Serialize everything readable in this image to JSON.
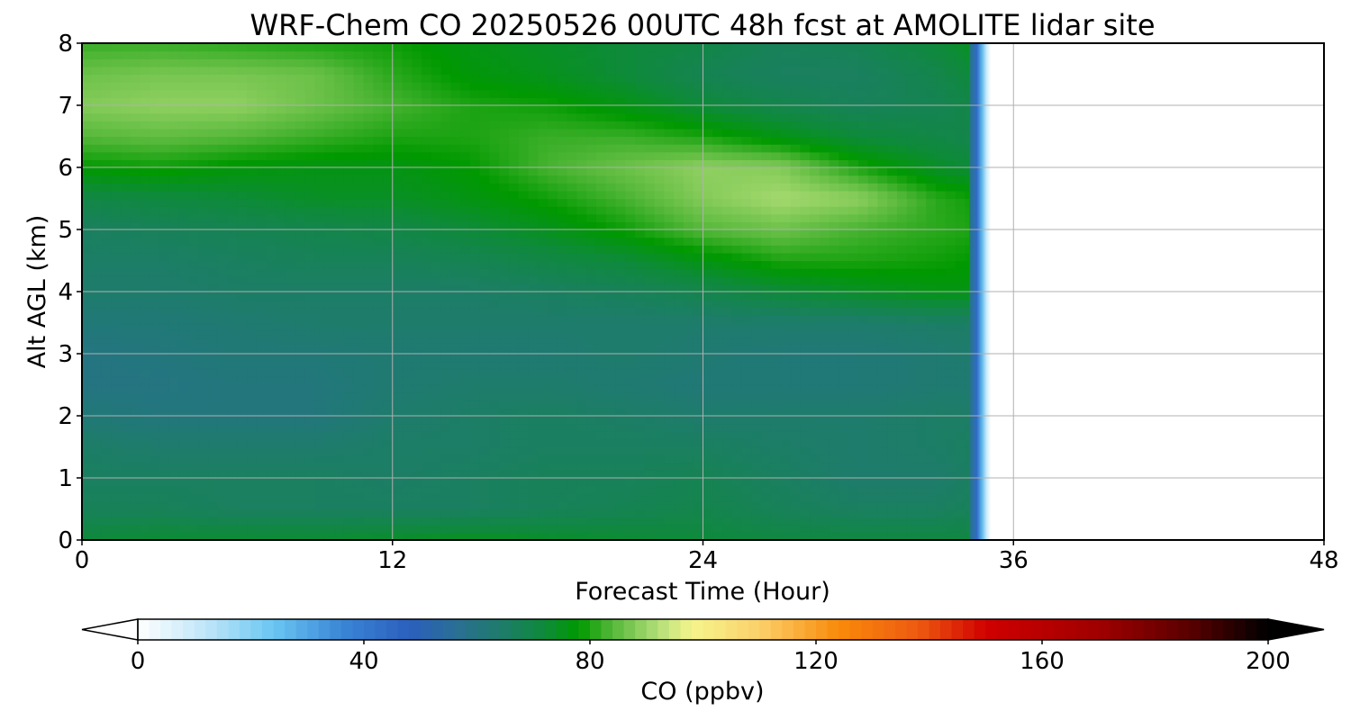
{
  "chart_data": {
    "type": "heatmap",
    "title": "WRF-Chem CO  20250526 00UTC 48h fcst at AMOLITE lidar site",
    "xlabel": "Forecast Time (Hour)",
    "ylabel": "Alt AGL (km)",
    "xlim": [
      0,
      48
    ],
    "ylim": [
      0,
      8
    ],
    "x_ticks": [
      "0",
      "12",
      "24",
      "36",
      "48"
    ],
    "y_ticks": [
      "0",
      "1",
      "2",
      "3",
      "4",
      "5",
      "6",
      "7",
      "8"
    ],
    "grid": true,
    "data_end_hour": 34.5,
    "x": [
      0,
      3,
      6,
      9,
      12,
      15,
      18,
      21,
      24,
      27,
      30,
      33,
      34.5
    ],
    "y": [
      0,
      0.5,
      1,
      1.5,
      2,
      2.5,
      3,
      3.5,
      4,
      4.5,
      5,
      5.5,
      6,
      6.5,
      7,
      7.5,
      8
    ],
    "z": [
      [
        72,
        73,
        73,
        73,
        74,
        75,
        74,
        73,
        72,
        71,
        71,
        71,
        71
      ],
      [
        67,
        67,
        66,
        66,
        66,
        66,
        67,
        68,
        69,
        67,
        66,
        66,
        67
      ],
      [
        66,
        66,
        66,
        66,
        65,
        66,
        67,
        67,
        68,
        66,
        64,
        64,
        66
      ],
      [
        65,
        64,
        64,
        64,
        65,
        65,
        66,
        66,
        66,
        65,
        64,
        65,
        66
      ],
      [
        62,
        61,
        61,
        61,
        64,
        65,
        66,
        65,
        64,
        64,
        64,
        65,
        65
      ],
      [
        60,
        60,
        61,
        61,
        63,
        64,
        64,
        63,
        62,
        62,
        62,
        63,
        63
      ],
      [
        60,
        61,
        62,
        62,
        63,
        63,
        63,
        64,
        63,
        62,
        62,
        63,
        64
      ],
      [
        62,
        62,
        63,
        64,
        64,
        64,
        64,
        64,
        64,
        64,
        64,
        65,
        65
      ],
      [
        64,
        64,
        65,
        65,
        65,
        65,
        66,
        67,
        69,
        72,
        74,
        76,
        76
      ],
      [
        65,
        65,
        66,
        67,
        67,
        68,
        70,
        72,
        76,
        80,
        80,
        79,
        78
      ],
      [
        66,
        67,
        68,
        69,
        70,
        72,
        75,
        79,
        84,
        86,
        83,
        81,
        80
      ],
      [
        70,
        71,
        72,
        74,
        74,
        76,
        79,
        83,
        88,
        91,
        89,
        81,
        79
      ],
      [
        78,
        79,
        77,
        76,
        76,
        78,
        83,
        86,
        89,
        88,
        80,
        74,
        72
      ],
      [
        84,
        85,
        84,
        82,
        80,
        80,
        82,
        82,
        80,
        76,
        72,
        70,
        69
      ],
      [
        88,
        89,
        89,
        86,
        83,
        80,
        79,
        76,
        72,
        69,
        67,
        68,
        70
      ],
      [
        86,
        87,
        87,
        86,
        81,
        77,
        75,
        72,
        68,
        66,
        66,
        69,
        72
      ],
      [
        82,
        82,
        81,
        80,
        79,
        76,
        74,
        72,
        70,
        67,
        68,
        72,
        75
      ]
    ],
    "colorbar": {
      "label": "CO  (ppbv)",
      "min": 0,
      "max": 200,
      "extend": "both",
      "tick_values": [
        0,
        40,
        80,
        120,
        160,
        200
      ],
      "tick_labels": [
        "0",
        "40",
        "80",
        "120",
        "160",
        "200"
      ],
      "color_stops": [
        [
          0,
          "#ffffff"
        ],
        [
          12,
          "#bfe6f8"
        ],
        [
          24,
          "#6ac6f2"
        ],
        [
          36,
          "#3a86d6"
        ],
        [
          48,
          "#2b5fbe"
        ],
        [
          56,
          "#2a6e96"
        ],
        [
          64,
          "#1e7c6c"
        ],
        [
          72,
          "#0e8a3a"
        ],
        [
          78,
          "#009900"
        ],
        [
          84,
          "#55b83a"
        ],
        [
          92,
          "#b2de78"
        ],
        [
          98,
          "#f5f58c"
        ],
        [
          110,
          "#fcd06a"
        ],
        [
          124,
          "#f98a0a"
        ],
        [
          138,
          "#ee5a10"
        ],
        [
          150,
          "#d00000"
        ],
        [
          170,
          "#a00000"
        ],
        [
          186,
          "#5a0000"
        ],
        [
          200,
          "#000000"
        ]
      ],
      "under_color": "#ffffff",
      "over_color": "#000000"
    }
  }
}
